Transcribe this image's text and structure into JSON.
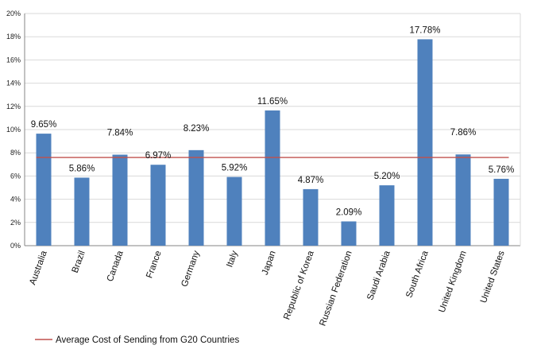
{
  "chart_data": {
    "type": "bar",
    "categories": [
      "Australia",
      "Brazil",
      "Canada",
      "France",
      "Germany",
      "Italy",
      "Japan",
      "Republic of Korea",
      "Russian Federation",
      "Saudi Arabia",
      "South Africa",
      "United Kingdom",
      "United States"
    ],
    "values": [
      9.65,
      5.86,
      7.84,
      6.97,
      8.23,
      5.92,
      11.65,
      4.87,
      2.09,
      5.2,
      17.78,
      7.86,
      5.76
    ],
    "data_labels": [
      "9.65%",
      "5.86%",
      "7.84%",
      "6.97%",
      "8.23%",
      "5.92%",
      "11.65%",
      "4.87%",
      "2.09%",
      "5.20%",
      "17.78%",
      "7.86%",
      "5.76%"
    ],
    "ylim": [
      0,
      20
    ],
    "y_ticks": [
      "0%",
      "2%",
      "4%",
      "6%",
      "8%",
      "10%",
      "12%",
      "14%",
      "16%",
      "18%",
      "20%"
    ],
    "grid": true,
    "bar_color": "#4f81bd",
    "reference_line": {
      "name": "Average Cost of Sending from G20 Countries",
      "value": 7.6,
      "color": "#c0504d"
    },
    "legend_position": "bottom-left",
    "title": "",
    "xlabel": "",
    "ylabel": ""
  }
}
